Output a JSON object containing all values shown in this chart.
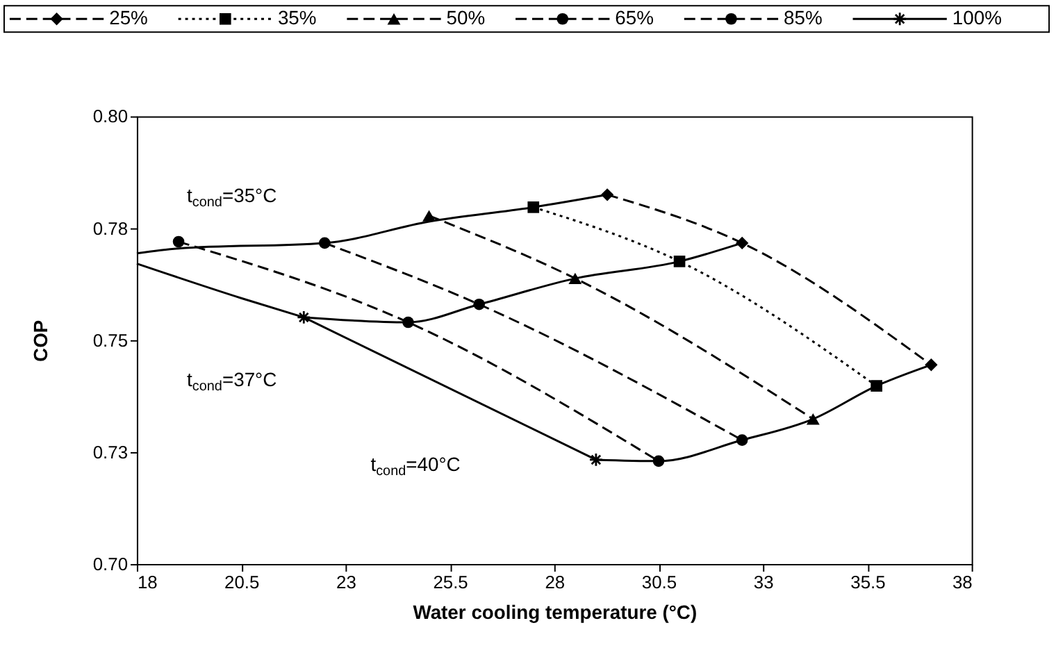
{
  "chart_data": {
    "type": "line",
    "xlabel": "Water cooling temperature (°C)",
    "ylabel": "COP",
    "xlim": [
      18,
      38
    ],
    "xticks": [
      18,
      20.5,
      23,
      25.5,
      28,
      30.5,
      33,
      35.5,
      38
    ],
    "ylim": [
      0.7,
      0.8
    ],
    "yticks": [
      {
        "value": 0.7,
        "label": "0.70"
      },
      {
        "value": 0.725,
        "label": "0.73"
      },
      {
        "value": 0.75,
        "label": "0.75"
      },
      {
        "value": 0.775,
        "label": "0.78"
      },
      {
        "value": 0.8,
        "label": "0.80"
      }
    ],
    "grid": false,
    "legend": "top",
    "series": [
      {
        "name": "25%",
        "color": "#000000",
        "marker": "diamond",
        "line_style": "dashed",
        "x": [
          29.27,
          32.5,
          37.03
        ],
        "values": [
          0.7825,
          0.7717,
          0.7445
        ]
      },
      {
        "name": "35%",
        "color": "#000000",
        "marker": "square",
        "line_style": "dotted",
        "x": [
          27.5,
          31.0,
          35.72
        ],
        "values": [
          0.7797,
          0.7676,
          0.7398
        ]
      },
      {
        "name": "50%",
        "color": "#000000",
        "marker": "triangle",
        "line_style": "dashed",
        "x": [
          25.0,
          28.5,
          34.2
        ],
        "values": [
          0.7778,
          0.7638,
          0.7324
        ]
      },
      {
        "name": "65%",
        "color": "#000000",
        "marker": "circle",
        "line_style": "dashed",
        "x": [
          22.5,
          26.2,
          32.5
        ],
        "values": [
          0.7717,
          0.758,
          0.7277
        ]
      },
      {
        "name": "85%",
        "color": "#000000",
        "marker": "circle",
        "line_style": "dashed",
        "x": [
          19.0,
          24.5,
          30.5
        ],
        "values": [
          0.772,
          0.754,
          0.723
        ]
      },
      {
        "name": "100%",
        "color": "#000000",
        "marker": "cross",
        "line_style": "solid",
        "x": [
          22.0,
          29.0
        ],
        "values": [
          0.7551,
          0.7233
        ]
      },
      {
        "color": "#000000",
        "marker": "none",
        "line_style": "solid",
        "x": [
          18.0,
          19.0,
          22.5,
          25.0,
          27.5,
          29.27
        ],
        "values": [
          0.7694,
          0.7705,
          0.7717,
          0.7765,
          0.7797,
          0.7825
        ]
      },
      {
        "color": "#000000",
        "marker": "none",
        "line_style": "solid",
        "x": [
          22.0,
          24.5,
          26.2,
          28.5,
          31.0,
          32.5
        ],
        "values": [
          0.7551,
          0.754,
          0.758,
          0.7638,
          0.7676,
          0.7717
        ]
      },
      {
        "color": "#000000",
        "marker": "none",
        "line_style": "solid",
        "x": [
          29.0,
          30.5,
          32.5,
          34.2,
          35.72,
          37.03
        ],
        "values": [
          0.7233,
          0.723,
          0.7277,
          0.7324,
          0.7398,
          0.7445
        ]
      },
      {
        "color": "#000000",
        "marker": "none",
        "line_style": "solid",
        "x": [
          18.0,
          20.5,
          22.0
        ],
        "values": [
          0.7671,
          0.7594,
          0.7551
        ]
      }
    ],
    "annotations": [
      "t$_{cond}$=35°C",
      "t$_{cond}$=37°C",
      "t$_{cond}$=40°C"
    ]
  }
}
